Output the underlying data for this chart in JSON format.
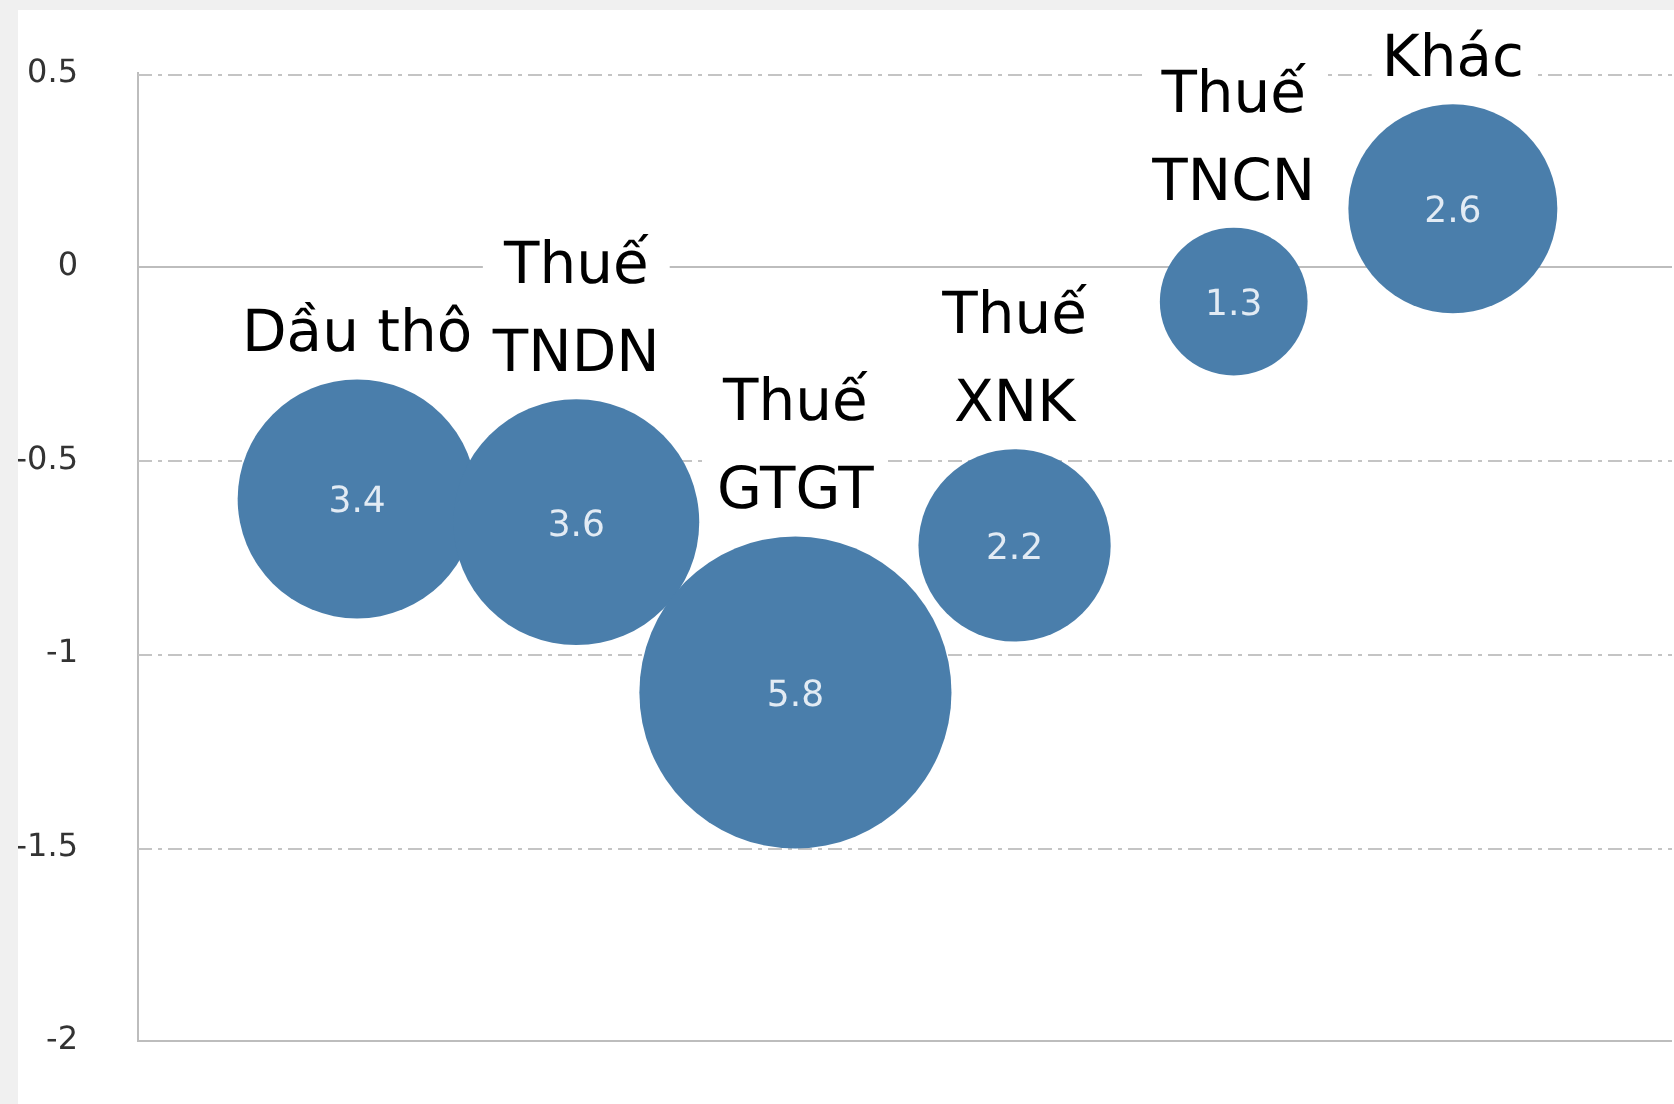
{
  "chart_data": {
    "type": "bubble",
    "categories": [
      "Dầu thô",
      "Thuế TNDN",
      "Thuế GTGT",
      "Thuế XNK",
      "Thuế TNCN",
      "Khác"
    ],
    "values": [
      -0.6,
      -0.66,
      -1.1,
      -0.72,
      -0.09,
      0.15
    ],
    "sizes": [
      3.4,
      3.6,
      5.8,
      2.2,
      1.3,
      2.6
    ],
    "value_labels": [
      "3.4",
      "3.6",
      "5.8",
      "2.2",
      "1.3",
      "2.6"
    ],
    "color": "#4a7eab",
    "ylim": [
      -2,
      0.5
    ],
    "yticks": [
      0.5,
      0,
      -0.5,
      -1,
      -1.5,
      -2
    ],
    "grid": "y",
    "tick_labels": "y"
  }
}
